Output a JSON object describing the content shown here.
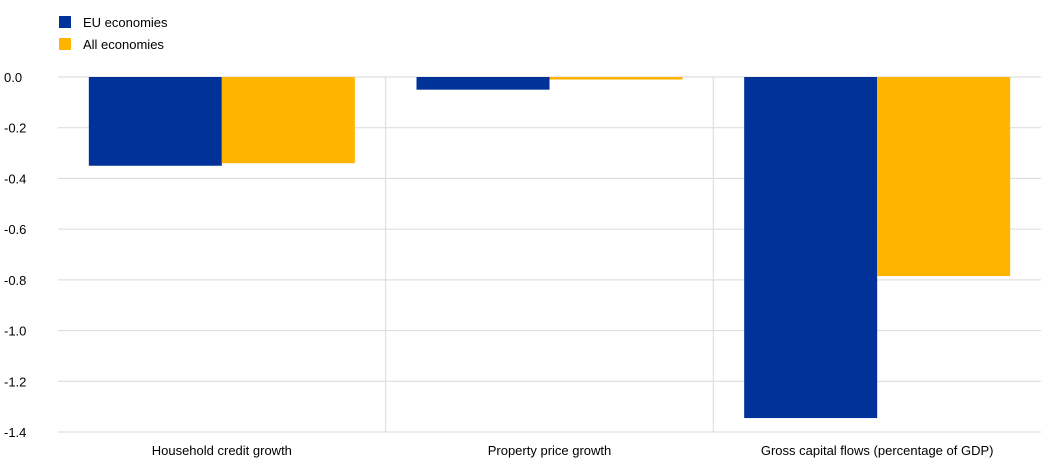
{
  "chart_data": {
    "type": "bar",
    "categories": [
      "Household credit growth",
      "Property price growth",
      "Gross capital flows (percentage of GDP)"
    ],
    "series": [
      {
        "name": "EU economies",
        "color": "#003299",
        "values": [
          -0.35,
          -0.05,
          -1.345
        ]
      },
      {
        "name": "All economies",
        "color": "#FFB400",
        "values": [
          -0.34,
          -0.01,
          -0.785
        ]
      }
    ],
    "ylim": [
      -1.4,
      0.0
    ],
    "yticks": [
      "0.0",
      "-0.2",
      "-0.4",
      "-0.6",
      "-0.8",
      "-1.0",
      "-1.2",
      "-1.4"
    ],
    "ytick_values": [
      0.0,
      -0.2,
      -0.4,
      -0.6,
      -0.8,
      -1.0,
      -1.2,
      -1.4
    ],
    "grid": true,
    "legend_position": "top-left"
  }
}
